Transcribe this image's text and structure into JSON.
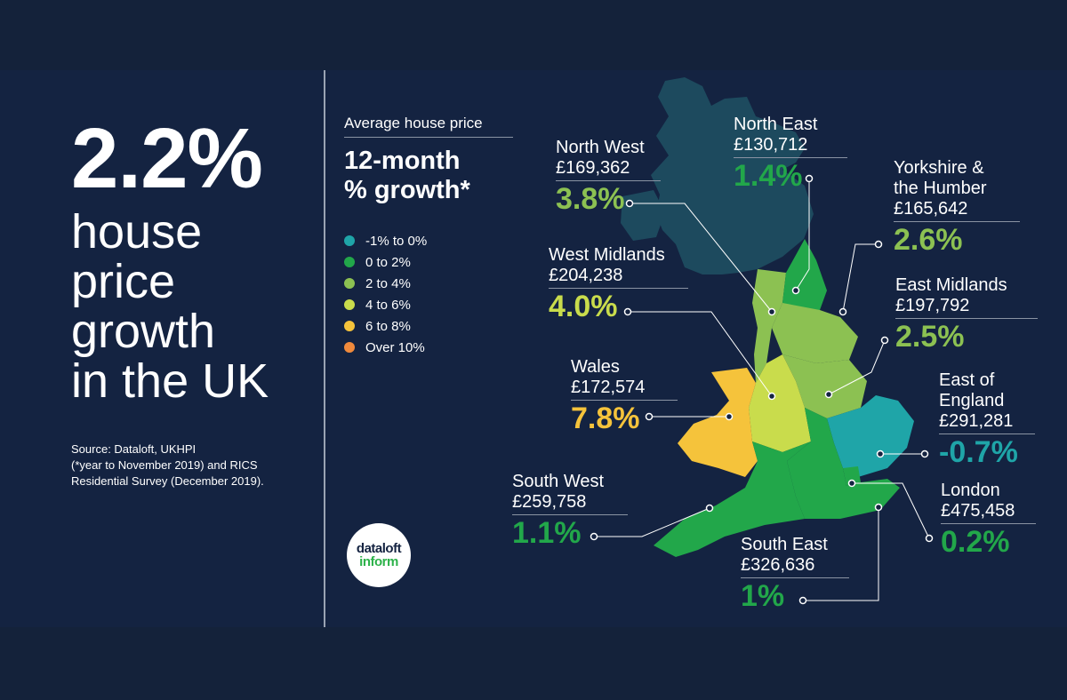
{
  "headline": {
    "value": "2.2%",
    "line1": "house",
    "line2": "price",
    "line3": "growth",
    "line4": "in the UK"
  },
  "source": {
    "line1": "Source: Dataloft, UKHPI",
    "line2": "(*year to November 2019) and RICS",
    "line3": "Residential Survey (December 2019)."
  },
  "legend": {
    "caption": "Average house price",
    "title_line1": "12-month",
    "title_line2": "% growth*",
    "items": [
      {
        "label": "-1% to 0%",
        "color": "#1fa5a8"
      },
      {
        "label": "0 to 2%",
        "color": "#22a74a"
      },
      {
        "label": "2 to 4%",
        "color": "#8cc152"
      },
      {
        "label": "4 to 6%",
        "color": "#c9dc4c"
      },
      {
        "label": "6 to 8%",
        "color": "#f5c33b"
      },
      {
        "label": "Over 10%",
        "color": "#f08a3c"
      }
    ]
  },
  "logo": {
    "line1": "dataloft",
    "line2": "inform"
  },
  "regions": {
    "north_east": {
      "name": "North East",
      "price": "£130,712",
      "growth": "1.4%",
      "color": "#22a74a"
    },
    "north_west": {
      "name": "North West",
      "price": "£169,362",
      "growth": "3.8%",
      "color": "#8cc152"
    },
    "yorkshire": {
      "name_line1": "Yorkshire &",
      "name_line2": "the Humber",
      "price": "£165,642",
      "growth": "2.6%",
      "color": "#8cc152"
    },
    "west_midlands": {
      "name": "West Midlands",
      "price": "£204,238",
      "growth": "4.0%",
      "color": "#c9dc4c"
    },
    "east_midlands": {
      "name": "East Midlands",
      "price": "£197,792",
      "growth": "2.5%",
      "color": "#8cc152"
    },
    "wales": {
      "name": "Wales",
      "price": "£172,574",
      "growth": "7.8%",
      "color": "#f5c33b"
    },
    "east_of_england": {
      "name_line1": "East of",
      "name_line2": "England",
      "price": "£291,281",
      "growth": "-0.7%",
      "color": "#1fa5a8"
    },
    "south_west": {
      "name": "South West",
      "price": "£259,758",
      "growth": "1.1%",
      "color": "#22a74a"
    },
    "london": {
      "name": "London",
      "price": "£475,458",
      "growth": "0.2%",
      "color": "#22a74a"
    },
    "south_east": {
      "name": "South East",
      "price": "£326,636",
      "growth": "1%",
      "color": "#22a74a"
    }
  }
}
